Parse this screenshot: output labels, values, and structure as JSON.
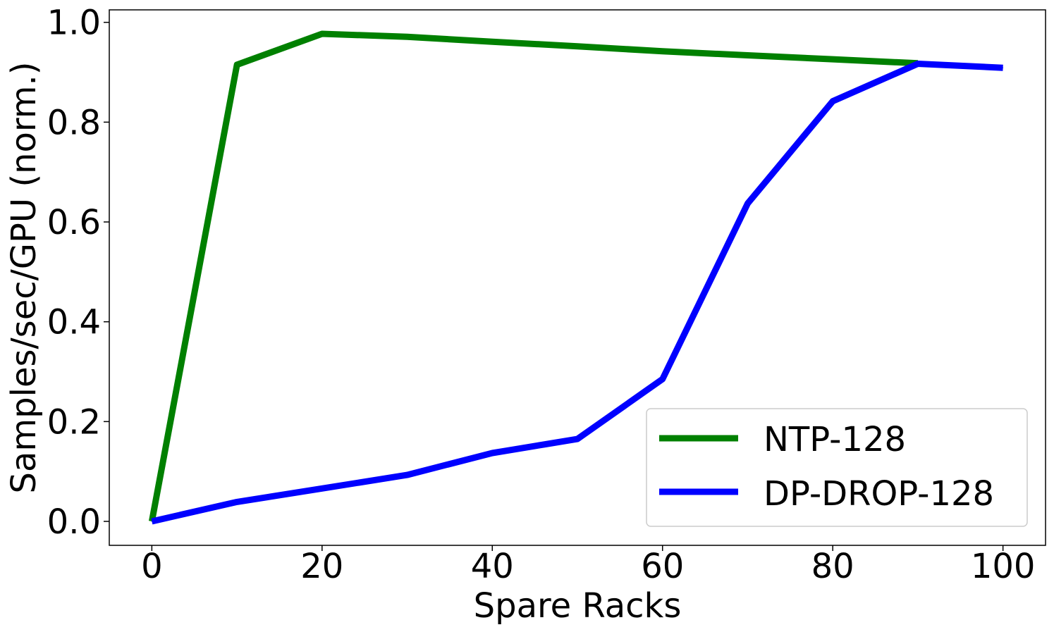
{
  "chart_data": {
    "type": "line",
    "xlabel": "Spare Racks",
    "ylabel": "Samples/sec/GPU (norm.)",
    "xlim": [
      -5,
      105
    ],
    "ylim": [
      -0.048,
      1.025
    ],
    "xticks": [
      0,
      20,
      40,
      60,
      80,
      100
    ],
    "yticks": [
      0.0,
      0.2,
      0.4,
      0.6,
      0.8,
      1.0
    ],
    "xtick_labels": [
      "0",
      "20",
      "40",
      "60",
      "80",
      "100"
    ],
    "ytick_labels": [
      "0.0",
      "0.2",
      "0.4",
      "0.6",
      "0.8",
      "1.0"
    ],
    "grid": false,
    "legend_position": "lower-right",
    "x": [
      0,
      10,
      20,
      30,
      40,
      50,
      60,
      70,
      80,
      90,
      100
    ],
    "series": [
      {
        "name": "NTP-128",
        "color": "#008000",
        "x": [
          0,
          10,
          20,
          30,
          40,
          50,
          60,
          70,
          80,
          90
        ],
        "values": [
          0.0,
          0.915,
          0.977,
          0.971,
          0.961,
          0.952,
          0.942,
          0.934,
          0.926,
          0.918
        ]
      },
      {
        "name": "DP-DROP-128",
        "color": "#0000ff",
        "x": [
          0,
          10,
          20,
          30,
          40,
          50,
          60,
          70,
          80,
          90,
          100
        ],
        "values": [
          0.0,
          0.039,
          0.066,
          0.093,
          0.137,
          0.165,
          0.285,
          0.637,
          0.842,
          0.917,
          0.909
        ]
      }
    ]
  }
}
